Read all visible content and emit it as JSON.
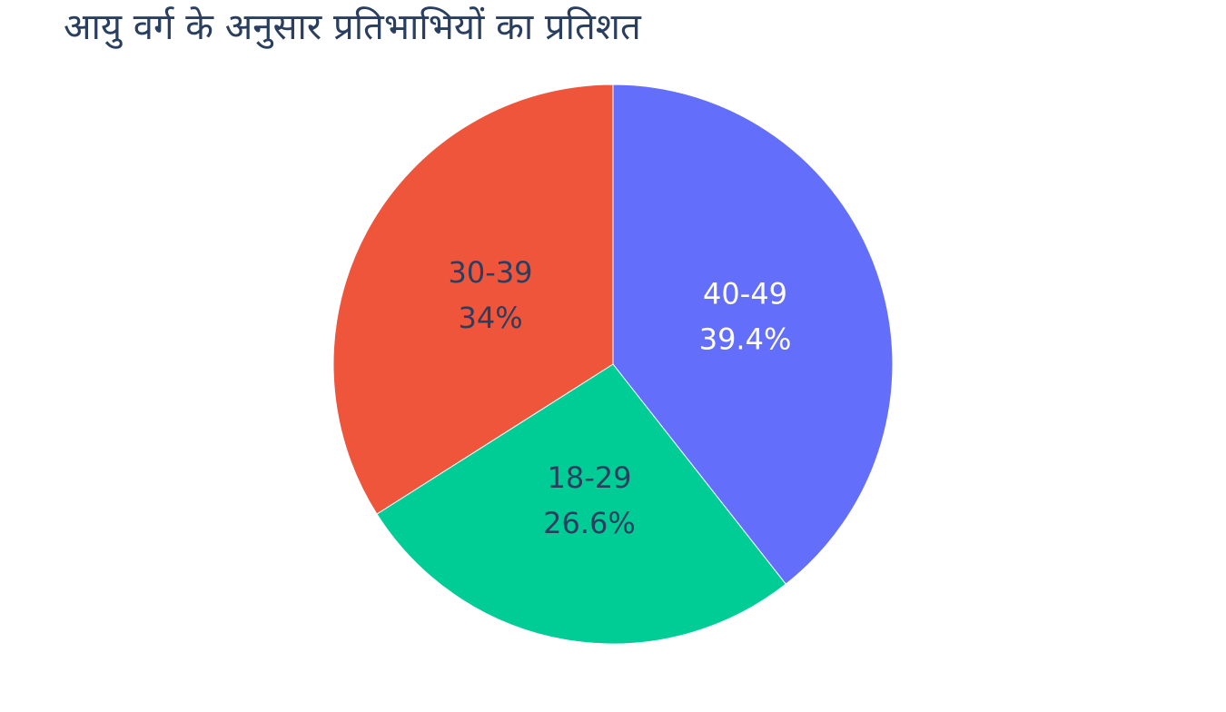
{
  "chart_data": {
    "type": "pie",
    "title": "आयु वर्ग के अनुसार प्रतिभाभियों का प्रतिशत",
    "categories": [
      "40-49",
      "18-29",
      "30-39"
    ],
    "values": [
      39.4,
      26.6,
      34
    ],
    "value_labels": [
      "39.4%",
      "26.6%",
      "34%"
    ],
    "colors": [
      "#636efa",
      "#00cc96",
      "#ef553b"
    ]
  }
}
